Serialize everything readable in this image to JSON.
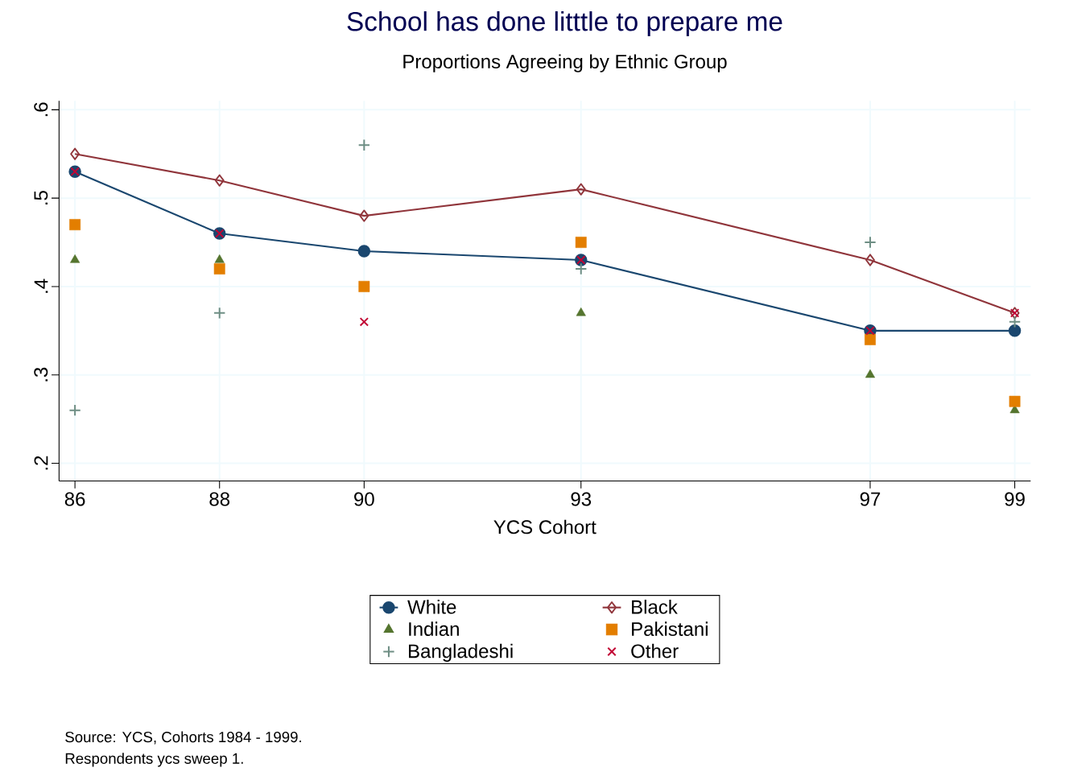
{
  "chart_data": {
    "type": "line",
    "title": "School has done litttle to prepare me",
    "subtitle": "Proportions Agreeing by Ethnic Group",
    "xlabel": "YCS Cohort",
    "x": [
      86,
      88,
      90,
      93,
      97,
      99
    ],
    "series": [
      {
        "name": "White",
        "marker": "circle",
        "color": "#1a476f",
        "values": [
          0.53,
          0.46,
          0.44,
          0.43,
          0.35,
          0.35
        ]
      },
      {
        "name": "Black",
        "marker": "diamond",
        "color": "#90353b",
        "values": [
          0.55,
          0.52,
          0.48,
          0.51,
          0.43,
          0.37
        ]
      },
      {
        "name": "Indian",
        "type": "scatter",
        "marker": "triangle",
        "color": "#55752f",
        "values": [
          0.43,
          0.43,
          null,
          0.37,
          0.3,
          0.26
        ]
      },
      {
        "name": "Pakistani",
        "type": "scatter",
        "marker": "square",
        "color": "#e37e00",
        "values": [
          0.47,
          0.42,
          0.4,
          0.45,
          0.34,
          0.27
        ]
      },
      {
        "name": "Bangladeshi",
        "type": "scatter",
        "marker": "cross",
        "color": "#6e8e84",
        "values": [
          0.26,
          0.37,
          0.56,
          0.42,
          0.45,
          0.36
        ]
      },
      {
        "name": "Other",
        "type": "scatter",
        "marker": "cross",
        "color": "#c10534",
        "values": [
          0.53,
          0.46,
          0.36,
          0.43,
          0.35,
          0.37
        ]
      }
    ],
    "xlim": [
      85.78,
      99.22
    ],
    "ylim": [
      0.18,
      0.61
    ],
    "xticks": [
      86,
      88,
      90,
      93,
      97,
      99
    ],
    "yticks": [
      {
        "value": 0.2,
        "label": ".2"
      },
      {
        "value": 0.3,
        "label": ".3"
      },
      {
        "value": 0.4,
        "label": ".4"
      },
      {
        "value": 0.5,
        "label": ".5"
      },
      {
        "value": 0.6,
        "label": ".6"
      }
    ],
    "grid": true,
    "legend": "bottom",
    "annotations": [
      "Source: YCS, Cohorts 1984 - 1999.",
      "Respondents ycs sweep 1."
    ]
  }
}
